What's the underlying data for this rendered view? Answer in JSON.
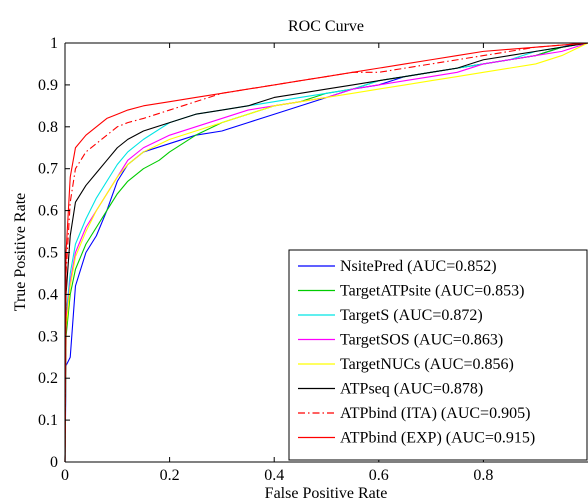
{
  "chart_data": {
    "type": "line",
    "title": "ROC Curve",
    "xlabel": "False Positive Rate",
    "ylabel": "True Positive Rate",
    "xlim": [
      0,
      1
    ],
    "ylim": [
      0,
      1
    ],
    "x_ticks": [
      "0",
      "0.2",
      "0.4",
      "0.6",
      "0.8"
    ],
    "y_ticks": [
      "0",
      "0.1",
      "0.2",
      "0.3",
      "0.4",
      "0.5",
      "0.6",
      "0.7",
      "0.8",
      "0.9",
      "1"
    ],
    "grid": false,
    "legend_position": "bottom-right",
    "series": [
      {
        "name": "NsitePred (AUC=0.852)",
        "color": "#0000ff",
        "dash": "solid",
        "points": [
          [
            0,
            0
          ],
          [
            0.002,
            0.23
          ],
          [
            0.01,
            0.25
          ],
          [
            0.02,
            0.42
          ],
          [
            0.04,
            0.5
          ],
          [
            0.06,
            0.54
          ],
          [
            0.08,
            0.6
          ],
          [
            0.1,
            0.67
          ],
          [
            0.12,
            0.71
          ],
          [
            0.15,
            0.74
          ],
          [
            0.2,
            0.76
          ],
          [
            0.25,
            0.78
          ],
          [
            0.3,
            0.79
          ],
          [
            0.35,
            0.81
          ],
          [
            0.4,
            0.83
          ],
          [
            0.45,
            0.85
          ],
          [
            0.5,
            0.87
          ],
          [
            0.55,
            0.89
          ],
          [
            0.6,
            0.9
          ],
          [
            0.65,
            0.92
          ],
          [
            0.7,
            0.93
          ],
          [
            0.75,
            0.94
          ],
          [
            0.8,
            0.95
          ],
          [
            0.85,
            0.96
          ],
          [
            0.9,
            0.97
          ],
          [
            0.95,
            0.99
          ],
          [
            0.98,
            1.0
          ],
          [
            1.0,
            1.0
          ]
        ]
      },
      {
        "name": "TargetATPsite (AUC=0.853)",
        "color": "#00cc00",
        "dash": "solid",
        "points": [
          [
            0,
            0
          ],
          [
            0.002,
            0.3
          ],
          [
            0.01,
            0.4
          ],
          [
            0.02,
            0.46
          ],
          [
            0.04,
            0.52
          ],
          [
            0.06,
            0.56
          ],
          [
            0.08,
            0.6
          ],
          [
            0.1,
            0.64
          ],
          [
            0.12,
            0.67
          ],
          [
            0.15,
            0.7
          ],
          [
            0.18,
            0.72
          ],
          [
            0.2,
            0.74
          ],
          [
            0.25,
            0.78
          ],
          [
            0.3,
            0.81
          ],
          [
            0.35,
            0.83
          ],
          [
            0.4,
            0.85
          ],
          [
            0.45,
            0.86
          ],
          [
            0.5,
            0.88
          ],
          [
            0.55,
            0.89
          ],
          [
            0.6,
            0.91
          ],
          [
            0.65,
            0.92
          ],
          [
            0.7,
            0.93
          ],
          [
            0.75,
            0.94
          ],
          [
            0.8,
            0.95
          ],
          [
            0.85,
            0.96
          ],
          [
            0.9,
            0.97
          ],
          [
            0.95,
            0.99
          ],
          [
            1.0,
            1.0
          ]
        ]
      },
      {
        "name": "TargetS (AUC=0.872)",
        "color": "#00e5e5",
        "dash": "solid",
        "points": [
          [
            0,
            0
          ],
          [
            0.002,
            0.35
          ],
          [
            0.01,
            0.45
          ],
          [
            0.02,
            0.52
          ],
          [
            0.04,
            0.58
          ],
          [
            0.06,
            0.63
          ],
          [
            0.08,
            0.67
          ],
          [
            0.1,
            0.71
          ],
          [
            0.12,
            0.74
          ],
          [
            0.15,
            0.77
          ],
          [
            0.2,
            0.81
          ],
          [
            0.25,
            0.83
          ],
          [
            0.3,
            0.84
          ],
          [
            0.35,
            0.85
          ],
          [
            0.4,
            0.86
          ],
          [
            0.45,
            0.87
          ],
          [
            0.5,
            0.88
          ],
          [
            0.55,
            0.89
          ],
          [
            0.6,
            0.91
          ],
          [
            0.65,
            0.92
          ],
          [
            0.7,
            0.93
          ],
          [
            0.75,
            0.94
          ],
          [
            0.8,
            0.95
          ],
          [
            0.85,
            0.96
          ],
          [
            0.9,
            0.98
          ],
          [
            0.95,
            0.99
          ],
          [
            1.0,
            1.0
          ]
        ]
      },
      {
        "name": "TargetSOS (AUC=0.863)",
        "color": "#ff00ff",
        "dash": "solid",
        "points": [
          [
            0,
            0
          ],
          [
            0.002,
            0.33
          ],
          [
            0.01,
            0.43
          ],
          [
            0.02,
            0.5
          ],
          [
            0.04,
            0.56
          ],
          [
            0.06,
            0.6
          ],
          [
            0.08,
            0.64
          ],
          [
            0.1,
            0.68
          ],
          [
            0.12,
            0.72
          ],
          [
            0.15,
            0.75
          ],
          [
            0.2,
            0.78
          ],
          [
            0.25,
            0.8
          ],
          [
            0.3,
            0.82
          ],
          [
            0.35,
            0.84
          ],
          [
            0.4,
            0.85
          ],
          [
            0.45,
            0.86
          ],
          [
            0.5,
            0.87
          ],
          [
            0.55,
            0.89
          ],
          [
            0.6,
            0.9
          ],
          [
            0.65,
            0.91
          ],
          [
            0.7,
            0.92
          ],
          [
            0.75,
            0.93
          ],
          [
            0.8,
            0.95
          ],
          [
            0.85,
            0.96
          ],
          [
            0.9,
            0.97
          ],
          [
            0.95,
            0.98
          ],
          [
            1.0,
            1.0
          ]
        ]
      },
      {
        "name": "TargetNUCs (AUC=0.856)",
        "color": "#ffff00",
        "dash": "solid",
        "points": [
          [
            0,
            0
          ],
          [
            0.002,
            0.32
          ],
          [
            0.01,
            0.42
          ],
          [
            0.02,
            0.49
          ],
          [
            0.04,
            0.55
          ],
          [
            0.06,
            0.6
          ],
          [
            0.08,
            0.64
          ],
          [
            0.1,
            0.68
          ],
          [
            0.12,
            0.71
          ],
          [
            0.15,
            0.74
          ],
          [
            0.2,
            0.77
          ],
          [
            0.25,
            0.79
          ],
          [
            0.3,
            0.81
          ],
          [
            0.35,
            0.83
          ],
          [
            0.4,
            0.85
          ],
          [
            0.45,
            0.86
          ],
          [
            0.5,
            0.87
          ],
          [
            0.55,
            0.88
          ],
          [
            0.6,
            0.89
          ],
          [
            0.65,
            0.9
          ],
          [
            0.7,
            0.91
          ],
          [
            0.75,
            0.92
          ],
          [
            0.8,
            0.93
          ],
          [
            0.85,
            0.94
          ],
          [
            0.9,
            0.95
          ],
          [
            0.95,
            0.97
          ],
          [
            1.0,
            1.0
          ]
        ]
      },
      {
        "name": "ATPseq (AUC=0.878)",
        "color": "#000000",
        "dash": "solid",
        "points": [
          [
            0,
            0
          ],
          [
            0.002,
            0.4
          ],
          [
            0.01,
            0.54
          ],
          [
            0.02,
            0.62
          ],
          [
            0.04,
            0.66
          ],
          [
            0.06,
            0.69
          ],
          [
            0.08,
            0.72
          ],
          [
            0.1,
            0.75
          ],
          [
            0.12,
            0.77
          ],
          [
            0.15,
            0.79
          ],
          [
            0.2,
            0.81
          ],
          [
            0.25,
            0.83
          ],
          [
            0.3,
            0.84
          ],
          [
            0.35,
            0.85
          ],
          [
            0.4,
            0.87
          ],
          [
            0.45,
            0.88
          ],
          [
            0.5,
            0.89
          ],
          [
            0.55,
            0.9
          ],
          [
            0.6,
            0.91
          ],
          [
            0.65,
            0.92
          ],
          [
            0.7,
            0.93
          ],
          [
            0.75,
            0.94
          ],
          [
            0.8,
            0.96
          ],
          [
            0.85,
            0.97
          ],
          [
            0.9,
            0.98
          ],
          [
            0.95,
            0.99
          ],
          [
            1.0,
            1.0
          ]
        ]
      },
      {
        "name": "ATPbind (ITA) (AUC=0.905)",
        "color": "#ff0000",
        "dash": "dashdot",
        "points": [
          [
            0,
            0
          ],
          [
            0.002,
            0.45
          ],
          [
            0.01,
            0.62
          ],
          [
            0.02,
            0.7
          ],
          [
            0.04,
            0.74
          ],
          [
            0.06,
            0.76
          ],
          [
            0.08,
            0.78
          ],
          [
            0.1,
            0.8
          ],
          [
            0.12,
            0.81
          ],
          [
            0.15,
            0.82
          ],
          [
            0.2,
            0.84
          ],
          [
            0.25,
            0.86
          ],
          [
            0.3,
            0.88
          ],
          [
            0.35,
            0.89
          ],
          [
            0.4,
            0.9
          ],
          [
            0.45,
            0.91
          ],
          [
            0.5,
            0.92
          ],
          [
            0.55,
            0.93
          ],
          [
            0.6,
            0.93
          ],
          [
            0.65,
            0.94
          ],
          [
            0.7,
            0.95
          ],
          [
            0.75,
            0.96
          ],
          [
            0.8,
            0.97
          ],
          [
            0.85,
            0.98
          ],
          [
            0.9,
            0.99
          ],
          [
            0.95,
            0.995
          ],
          [
            1.0,
            1.0
          ]
        ]
      },
      {
        "name": "ATPbind (EXP) (AUC=0.915)",
        "color": "#ff0000",
        "dash": "solid",
        "points": [
          [
            0,
            0
          ],
          [
            0.002,
            0.5
          ],
          [
            0.01,
            0.68
          ],
          [
            0.02,
            0.75
          ],
          [
            0.04,
            0.78
          ],
          [
            0.06,
            0.8
          ],
          [
            0.08,
            0.82
          ],
          [
            0.1,
            0.83
          ],
          [
            0.12,
            0.84
          ],
          [
            0.15,
            0.85
          ],
          [
            0.2,
            0.86
          ],
          [
            0.25,
            0.87
          ],
          [
            0.3,
            0.88
          ],
          [
            0.35,
            0.89
          ],
          [
            0.4,
            0.9
          ],
          [
            0.45,
            0.91
          ],
          [
            0.5,
            0.92
          ],
          [
            0.55,
            0.93
          ],
          [
            0.6,
            0.94
          ],
          [
            0.65,
            0.95
          ],
          [
            0.7,
            0.96
          ],
          [
            0.75,
            0.97
          ],
          [
            0.8,
            0.98
          ],
          [
            0.85,
            0.985
          ],
          [
            0.9,
            0.99
          ],
          [
            0.95,
            0.995
          ],
          [
            1.0,
            1.0
          ]
        ]
      }
    ]
  }
}
